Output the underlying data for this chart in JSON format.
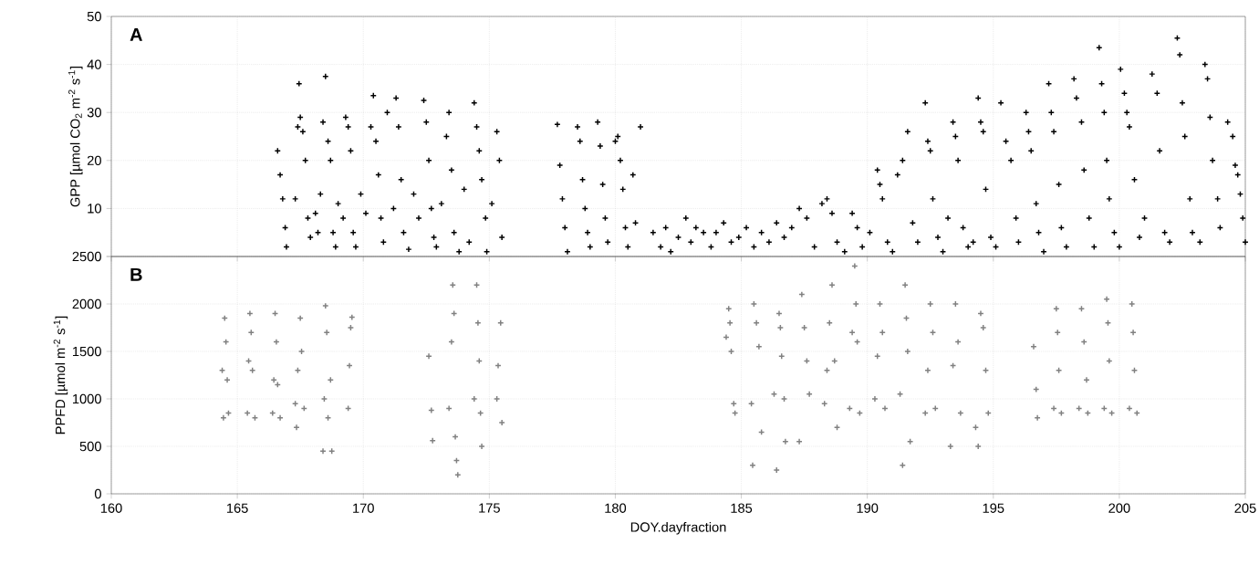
{
  "chart_data": [
    {
      "type": "scatter",
      "ylabel": "GPP [µmol CO$_{2}$ m$^{-2}$ s$^{-1}$]",
      "annotations": [
        "A"
      ],
      "xlim": [
        160,
        205
      ],
      "xticks": [
        160,
        165,
        170,
        175,
        180,
        185,
        190,
        195,
        200,
        205
      ],
      "ylim": [
        0,
        50
      ],
      "yticks": [
        {
          "value": 0,
          "label": null
        },
        10,
        20,
        30,
        40,
        50
      ],
      "tick_labels": "y",
      "grid": true,
      "marker": "cross",
      "color": "#000000",
      "x": [
        166.6,
        166.7,
        166.8,
        166.9,
        166.95,
        167.3,
        167.4,
        167.45,
        167.5,
        167.6,
        167.7,
        167.8,
        167.9,
        168.1,
        168.2,
        168.3,
        168.4,
        168.5,
        168.6,
        168.7,
        168.8,
        168.9,
        169.0,
        169.2,
        169.3,
        169.4,
        169.5,
        169.6,
        169.7,
        169.9,
        170.1,
        170.3,
        170.4,
        170.5,
        170.6,
        170.7,
        170.8,
        170.95,
        171.2,
        171.3,
        171.4,
        171.5,
        171.6,
        171.8,
        172.0,
        172.2,
        172.4,
        172.5,
        172.6,
        172.7,
        172.8,
        172.9,
        173.1,
        173.3,
        173.4,
        173.5,
        173.6,
        173.8,
        174.0,
        174.2,
        174.4,
        174.5,
        174.6,
        174.7,
        174.85,
        174.9,
        175.1,
        175.3,
        175.4,
        175.5,
        177.7,
        177.8,
        177.9,
        178.0,
        178.1,
        178.5,
        178.6,
        178.7,
        178.8,
        178.9,
        179.0,
        179.3,
        179.4,
        179.5,
        179.6,
        179.7,
        180.0,
        180.1,
        180.2,
        180.3,
        180.4,
        180.5,
        180.7,
        180.8,
        181.0,
        181.5,
        181.8,
        182.0,
        182.2,
        182.5,
        182.8,
        183.0,
        183.2,
        183.5,
        183.8,
        184.0,
        184.3,
        184.6,
        184.9,
        185.2,
        185.5,
        185.8,
        186.1,
        186.4,
        186.7,
        187.0,
        187.3,
        187.6,
        187.9,
        188.2,
        188.4,
        188.6,
        188.8,
        189.1,
        189.4,
        189.6,
        189.8,
        190.1,
        190.4,
        190.5,
        190.6,
        190.8,
        191.0,
        191.2,
        191.4,
        191.6,
        191.8,
        192.0,
        192.3,
        192.4,
        192.5,
        192.6,
        192.8,
        193.0,
        193.2,
        193.4,
        193.5,
        193.6,
        193.8,
        194.0,
        194.2,
        194.4,
        194.5,
        194.6,
        194.7,
        194.9,
        195.1,
        195.3,
        195.5,
        195.7,
        195.9,
        196.0,
        196.3,
        196.4,
        196.5,
        196.7,
        196.8,
        197.0,
        197.2,
        197.3,
        197.4,
        197.6,
        197.7,
        197.9,
        198.2,
        198.3,
        198.5,
        198.6,
        198.8,
        199.0,
        199.2,
        199.3,
        199.4,
        199.5,
        199.6,
        199.8,
        200.0,
        200.05,
        200.2,
        200.3,
        200.4,
        200.6,
        200.8,
        201.0,
        201.3,
        201.5,
        201.6,
        201.8,
        202.0,
        202.3,
        202.4,
        202.5,
        202.6,
        202.8,
        202.9,
        203.2,
        203.4,
        203.5,
        203.6,
        203.7,
        203.9,
        204.0,
        204.3,
        204.5,
        204.6,
        204.7,
        204.8,
        204.9,
        205.0
      ],
      "values": [
        22,
        17,
        12,
        6,
        2,
        12,
        27,
        36,
        29,
        26,
        20,
        8,
        4,
        9,
        5,
        13,
        28,
        37.5,
        24,
        20,
        5,
        2,
        11,
        8,
        29,
        27,
        22,
        5,
        2,
        13,
        9,
        27,
        33.5,
        24,
        17,
        8,
        3,
        30,
        10,
        33,
        27,
        16,
        5,
        1.5,
        13,
        8,
        32.5,
        28,
        20,
        10,
        4,
        2,
        11,
        25,
        30,
        18,
        5,
        1,
        14,
        3,
        32,
        27,
        22,
        16,
        8,
        1,
        11,
        26,
        20,
        4,
        27.5,
        19,
        12,
        6,
        1,
        27,
        24,
        16,
        10,
        5,
        2,
        28,
        23,
        15,
        8,
        3,
        24,
        25,
        20,
        14,
        6,
        2,
        17,
        7,
        27,
        5,
        2,
        6,
        1,
        4,
        8,
        3,
        6,
        5,
        2,
        5,
        7,
        3,
        4,
        6,
        2,
        5,
        3,
        7,
        4,
        6,
        10,
        8,
        2,
        11,
        12,
        9,
        3,
        1,
        9,
        6,
        2,
        5,
        18,
        15,
        12,
        3,
        1,
        17,
        20,
        26,
        7,
        3,
        32,
        24,
        22,
        12,
        4,
        1,
        8,
        28,
        25,
        20,
        6,
        2,
        3,
        33,
        28,
        26,
        14,
        4,
        2,
        32,
        24,
        20,
        8,
        3,
        30,
        26,
        22,
        11,
        5,
        1,
        36,
        30,
        26,
        15,
        6,
        2,
        37,
        33,
        28,
        18,
        8,
        2,
        43.5,
        36,
        30,
        20,
        12,
        5,
        2,
        39,
        34,
        30,
        27,
        16,
        4,
        8,
        38,
        34,
        22,
        5,
        3,
        45.5,
        42,
        32,
        25,
        12,
        5,
        3,
        40,
        37,
        29,
        20,
        12,
        6,
        28,
        25,
        19,
        17,
        13,
        8,
        3
      ]
    },
    {
      "type": "scatter",
      "xlabel": "DOY.dayfraction",
      "ylabel": "PPFD [µmol m$^{-2}$ s$^{-1}$]",
      "annotations": [
        "B"
      ],
      "xlim": [
        160,
        205
      ],
      "xticks": [
        160,
        165,
        170,
        175,
        180,
        185,
        190,
        195,
        200,
        205
      ],
      "ylim": [
        0,
        2500
      ],
      "yticks": [
        0,
        500,
        1000,
        1500,
        2000,
        2500
      ],
      "grid": true,
      "marker": "cross",
      "color": "#808080",
      "x": [
        164.4,
        164.45,
        164.5,
        164.55,
        164.6,
        164.65,
        165.4,
        165.45,
        165.5,
        165.55,
        165.6,
        165.7,
        166.4,
        166.45,
        166.5,
        166.55,
        166.6,
        166.7,
        167.3,
        167.35,
        167.4,
        167.5,
        167.55,
        167.65,
        168.4,
        168.45,
        168.5,
        168.55,
        168.6,
        168.7,
        168.75,
        169.4,
        169.45,
        169.5,
        169.55,
        172.6,
        172.7,
        172.75,
        173.4,
        173.5,
        173.55,
        173.6,
        173.65,
        173.7,
        173.75,
        174.4,
        174.5,
        174.55,
        174.6,
        174.65,
        174.7,
        175.3,
        175.35,
        175.45,
        175.5,
        184.4,
        184.5,
        184.55,
        184.6,
        184.7,
        184.75,
        185.4,
        185.45,
        185.5,
        185.6,
        185.7,
        185.8,
        186.3,
        186.4,
        186.5,
        186.55,
        186.6,
        186.7,
        186.75,
        187.3,
        187.4,
        187.5,
        187.6,
        187.7,
        188.3,
        188.4,
        188.5,
        188.6,
        188.7,
        188.8,
        189.3,
        189.4,
        189.5,
        189.55,
        189.6,
        189.7,
        190.3,
        190.4,
        190.5,
        190.6,
        190.7,
        191.3,
        191.4,
        191.5,
        191.55,
        191.6,
        191.7,
        192.3,
        192.4,
        192.5,
        192.6,
        192.7,
        193.3,
        193.4,
        193.5,
        193.6,
        193.7,
        194.3,
        194.4,
        194.5,
        194.6,
        194.7,
        194.8,
        196.6,
        196.7,
        196.75,
        197.4,
        197.5,
        197.55,
        197.6,
        197.7,
        198.4,
        198.5,
        198.6,
        198.7,
        198.75,
        199.4,
        199.5,
        199.55,
        199.6,
        199.7,
        200.4,
        200.5,
        200.55,
        200.6,
        200.7
      ],
      "values": [
        1300,
        800,
        1850,
        1600,
        1200,
        850,
        850,
        1400,
        1900,
        1700,
        1300,
        800,
        850,
        1200,
        1900,
        1600,
        1150,
        800,
        950,
        700,
        1300,
        1850,
        1500,
        900,
        450,
        1000,
        1980,
        1700,
        800,
        1200,
        450,
        900,
        1350,
        1750,
        1860,
        1450,
        880,
        560,
        900,
        1600,
        2200,
        1900,
        600,
        350,
        200,
        1000,
        2200,
        1800,
        1400,
        850,
        500,
        1000,
        1350,
        1800,
        750,
        1650,
        1950,
        1800,
        1500,
        950,
        850,
        950,
        300,
        2000,
        1800,
        1550,
        650,
        1050,
        250,
        1900,
        1750,
        1450,
        1000,
        550,
        550,
        2100,
        1750,
        1400,
        1050,
        950,
        1300,
        1800,
        2200,
        1400,
        700,
        900,
        1700,
        2400,
        2000,
        1600,
        850,
        1000,
        1450,
        2000,
        1700,
        900,
        1050,
        300,
        2200,
        1850,
        1500,
        550,
        850,
        1300,
        2000,
        1700,
        900,
        500,
        1350,
        2000,
        1600,
        850,
        700,
        500,
        1900,
        1750,
        1300,
        850,
        1550,
        1100,
        800,
        900,
        1950,
        1700,
        1300,
        850,
        900,
        1950,
        1600,
        1200,
        850,
        900,
        2050,
        1800,
        1400,
        850,
        900,
        2000,
        1700,
        1300,
        850
      ]
    }
  ]
}
